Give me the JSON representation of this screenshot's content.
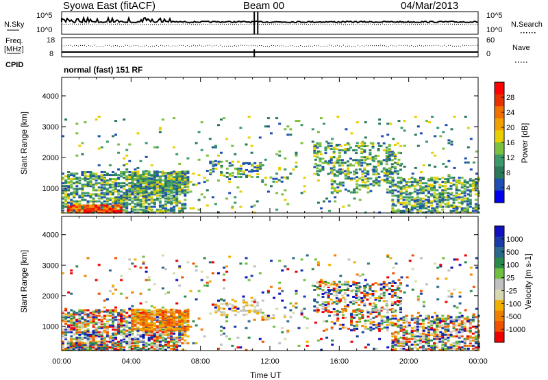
{
  "header": {
    "title": "Syowa East (fitACF)",
    "beam": "Beam 00",
    "date": "04/Mar/2013"
  },
  "panels": {
    "nsky": "N.Sky",
    "nsky_ticks": [
      "10^5",
      "10^0"
    ],
    "nsearch": "N.Search",
    "nsearch_ticks": [
      "10^5",
      "10^0"
    ],
    "freq": "Freq.",
    "freq_unit": "[MHz]",
    "freq_ticks": [
      "18",
      "8"
    ],
    "nave": "Nave",
    "nave_ticks": [
      "60",
      "0"
    ],
    "cpid": "CPID",
    "cpid_text": "normal (fast) 151 RF"
  },
  "colors": {
    "power": [
      "#0000ee",
      "#1f4fb4",
      "#2a7a5a",
      "#3a9a6a",
      "#7cc040",
      "#e8d000",
      "#f0a000",
      "#f07000",
      "#e83000",
      "#ff0000"
    ],
    "velocity": [
      "#ee0000",
      "#f05000",
      "#f08000",
      "#f0b000",
      "#d8d8b0",
      "#c0c0c0",
      "#70c040",
      "#2a8a4a",
      "#2a6a8a",
      "#1a3aa8",
      "#1010c0"
    ]
  },
  "chart_data": [
    {
      "type": "heatmap",
      "title": "",
      "ylabel": "Slant Range [km]",
      "xlabel": "",
      "ylim": [
        200,
        4600
      ],
      "xlim": [
        0,
        24
      ],
      "yticks": [
        1000,
        2000,
        3000,
        4000
      ],
      "colorbar_label": "Power [dB]",
      "colorbar_ticks": [
        4,
        8,
        12,
        16,
        20,
        24,
        28
      ],
      "colorbar_range": [
        0,
        32
      ]
    },
    {
      "type": "heatmap",
      "title": "",
      "ylabel": "Slant Range [km]",
      "xlabel": "Time UT",
      "ylim": [
        200,
        4600
      ],
      "xlim": [
        0,
        24
      ],
      "yticks": [
        1000,
        2000,
        3000,
        4000
      ],
      "xticks": [
        "00:00",
        "04:00",
        "08:00",
        "12:00",
        "16:00",
        "20:00",
        "00:00"
      ],
      "colorbar_label": "Velocity [m s-1]",
      "colorbar_ticks": [
        "1000",
        "500",
        "100",
        "25",
        "-25",
        "-100",
        "-500",
        "-1000"
      ]
    }
  ]
}
